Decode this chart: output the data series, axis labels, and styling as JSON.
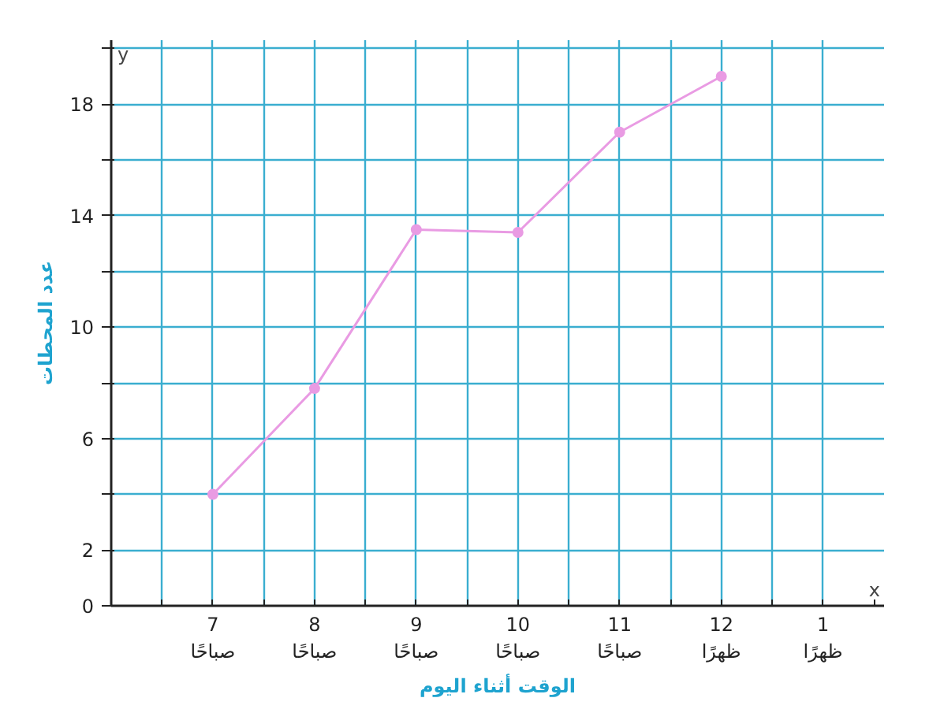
{
  "chart_data": {
    "type": "line",
    "xlabel": "الوقت أثناء اليوم",
    "ylabel": "عدد المحطات",
    "annotations": [
      "x",
      "y"
    ],
    "categories": [
      "7\nصباحًا",
      "8\nصباحًا",
      "9\nصباحًا",
      "10\nصباحًا",
      "11\nصباحًا",
      "12\nظهرًا",
      "1\nظهرًا"
    ],
    "series": [
      {
        "color": "#e99be3",
        "values": [
          4,
          7.8,
          13.5,
          13.4,
          17,
          19,
          null
        ]
      }
    ],
    "ylim": [
      0,
      20.3
    ],
    "yticks": [
      0,
      2,
      {
        "value": 4,
        "label": null
      },
      6,
      {
        "value": 8,
        "label": null
      },
      10,
      {
        "value": 12,
        "label": null
      },
      14,
      {
        "value": 16,
        "label": null
      },
      18,
      {
        "value": 20,
        "label": null
      }
    ],
    "grid": true,
    "marker": "circle",
    "line_style": "solid"
  }
}
